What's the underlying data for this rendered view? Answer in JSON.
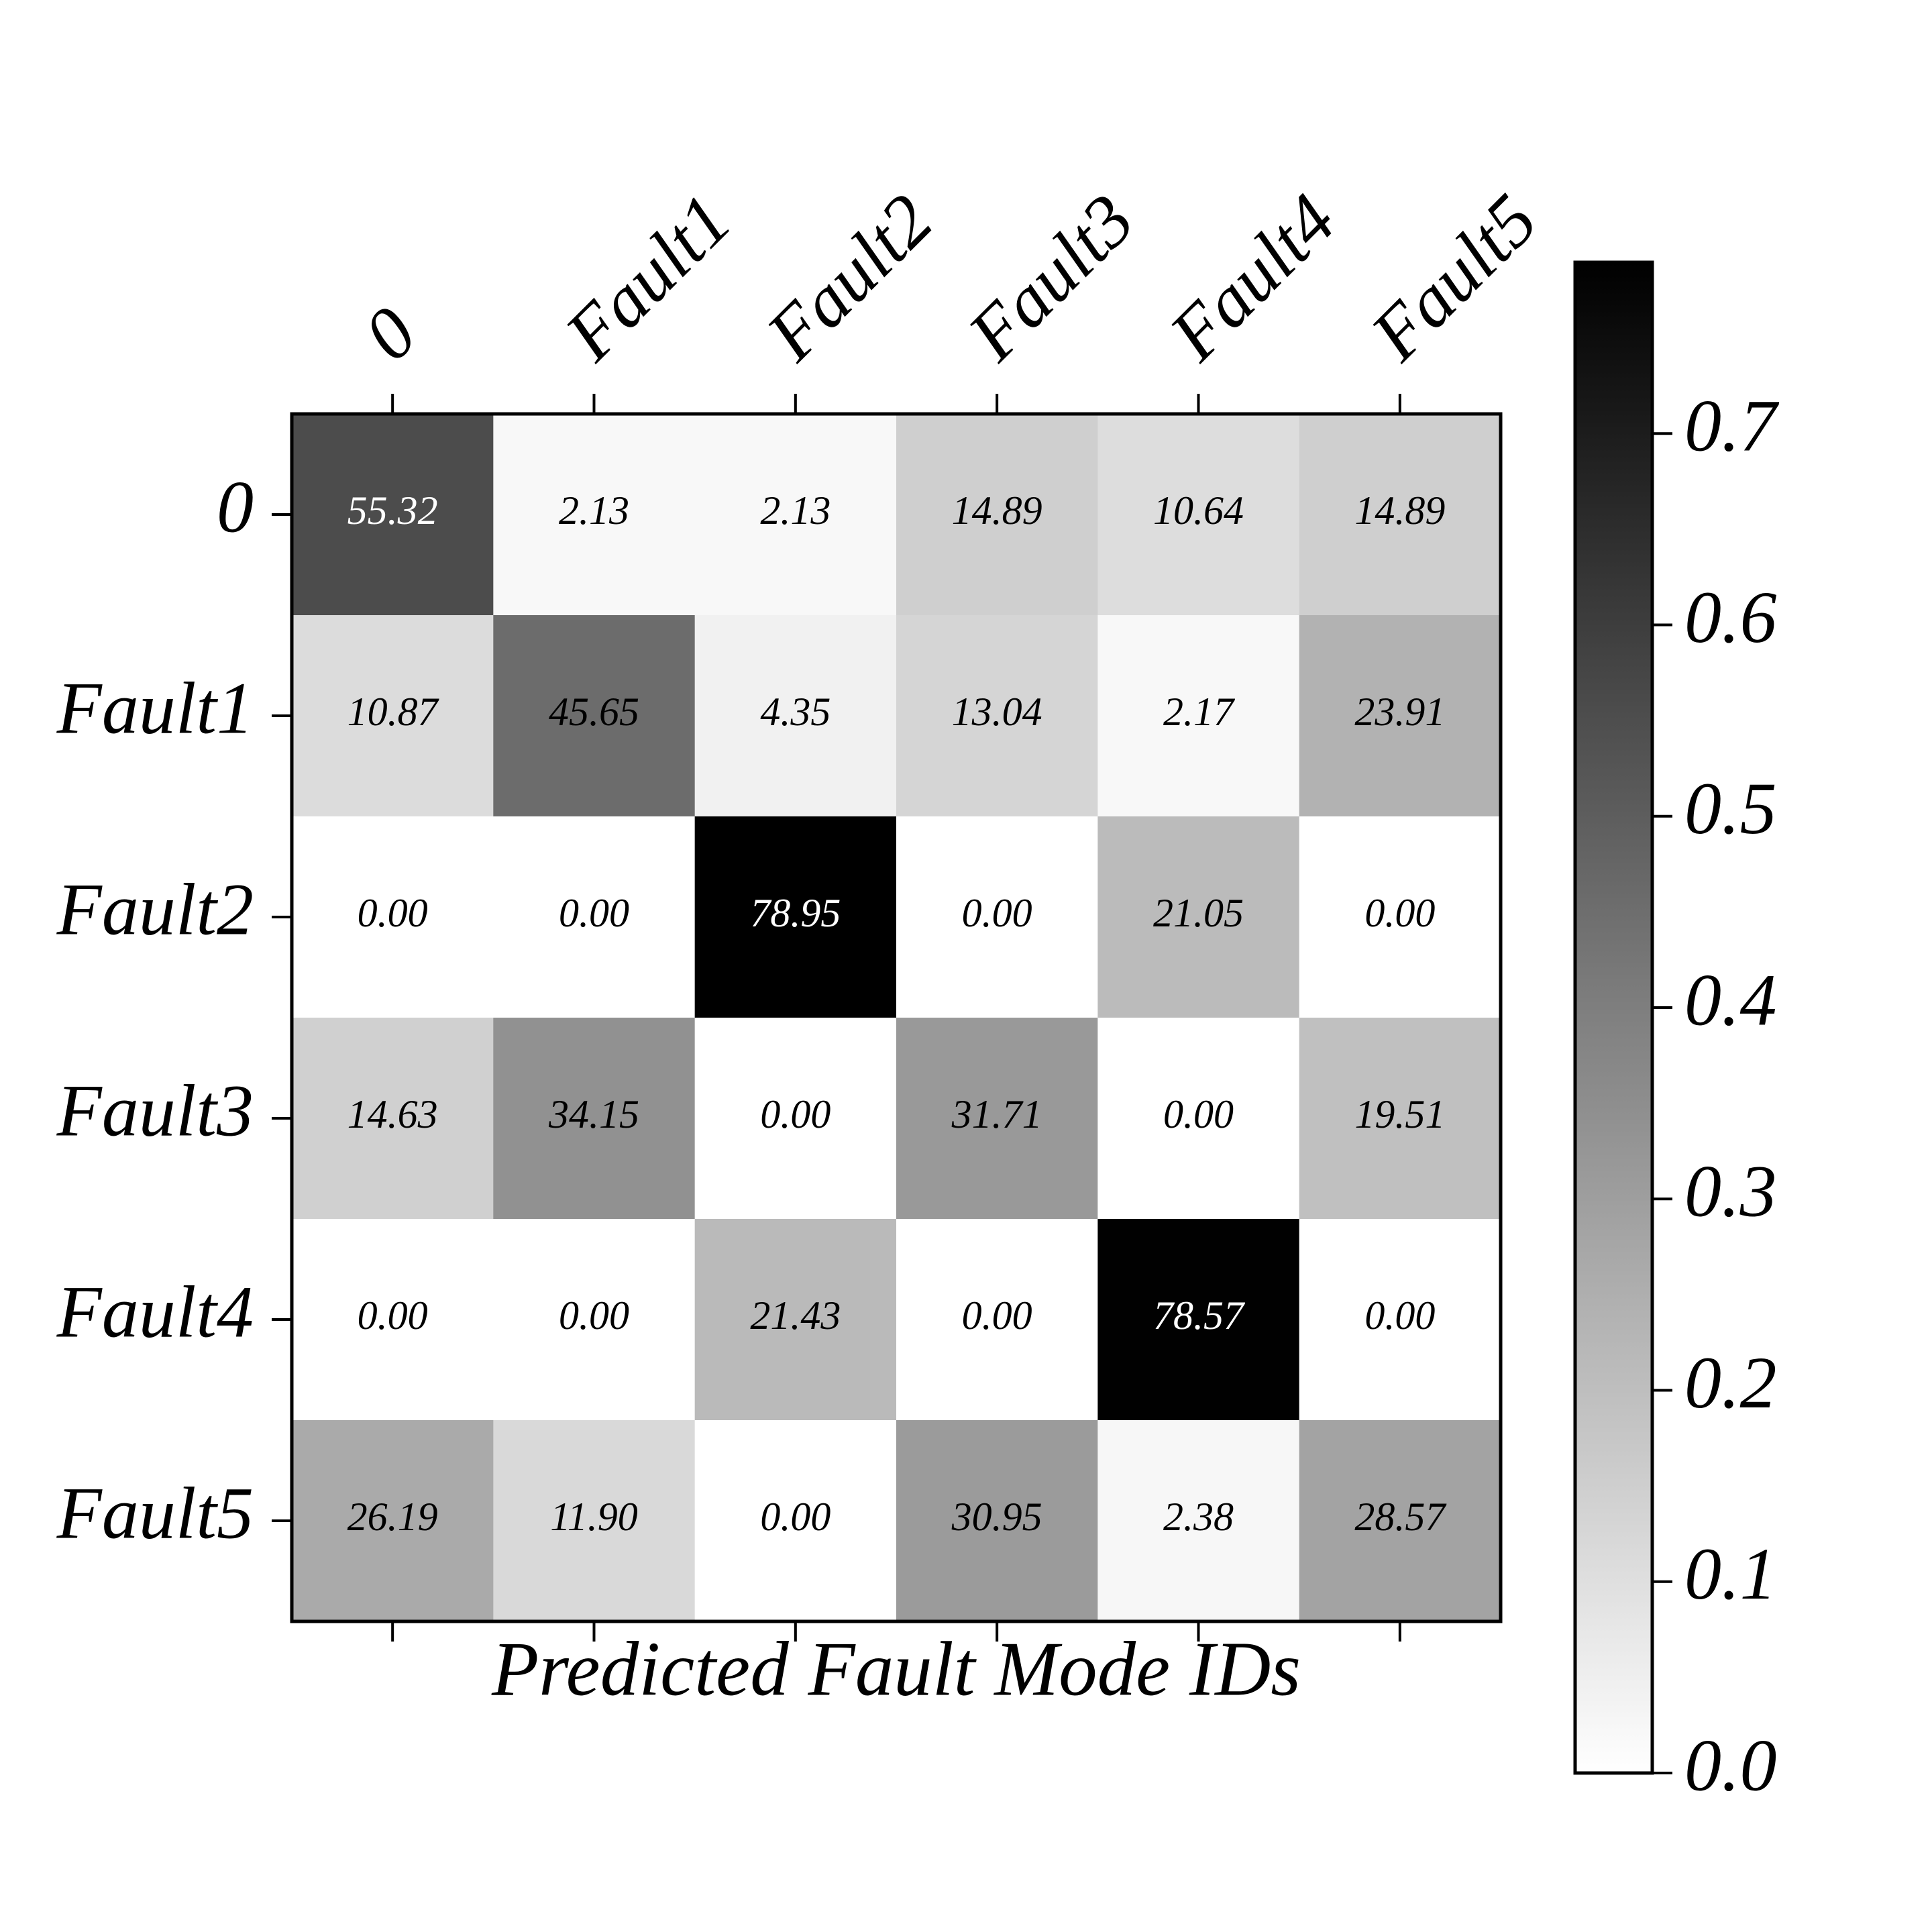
{
  "chart_data": {
    "type": "heatmap",
    "x_categories": [
      "0",
      "Fault1",
      "Fault2",
      "Fault3",
      "Fault4",
      "Fault5"
    ],
    "y_categories": [
      "0",
      "Fault1",
      "Fault2",
      "Fault3",
      "Fault4",
      "Fault5"
    ],
    "xlabel": "Predicted Fault Mode IDs",
    "values": [
      [
        0.5532,
        0.0213,
        0.0213,
        0.1489,
        0.1064,
        0.1489
      ],
      [
        0.1087,
        0.4565,
        0.0435,
        0.1304,
        0.0217,
        0.2391
      ],
      [
        0,
        0,
        0.7895,
        0,
        0.2105,
        0
      ],
      [
        0.1463,
        0.3415,
        0,
        0.3171,
        0,
        0.1951
      ],
      [
        0,
        0,
        0.2143,
        0,
        0.7857,
        0
      ],
      [
        0.2619,
        0.119,
        0,
        0.3095,
        0.0238,
        0.2857
      ]
    ],
    "value_labels": [
      [
        "55.32",
        "2.13",
        "2.13",
        "14.89",
        "10.64",
        "14.89"
      ],
      [
        "10.87",
        "45.65",
        "4.35",
        "13.04",
        "2.17",
        "23.91"
      ],
      [
        "0.00",
        "0.00",
        "78.95",
        "0.00",
        "21.05",
        "0.00"
      ],
      [
        "14.63",
        "34.15",
        "0.00",
        "31.71",
        "0.00",
        "19.51"
      ],
      [
        "0.00",
        "0.00",
        "21.43",
        "0.00",
        "78.57",
        "0.00"
      ],
      [
        "26.19",
        "11.90",
        "0.00",
        "30.95",
        "2.38",
        "28.57"
      ]
    ],
    "colormap": "gray_r",
    "clim": [
      0,
      0.7895
    ],
    "cticks": [
      {
        "value": 0,
        "label": "0.0"
      },
      0.1,
      0.2,
      0.3,
      0.4,
      0.5,
      0.6,
      0.7
    ]
  }
}
